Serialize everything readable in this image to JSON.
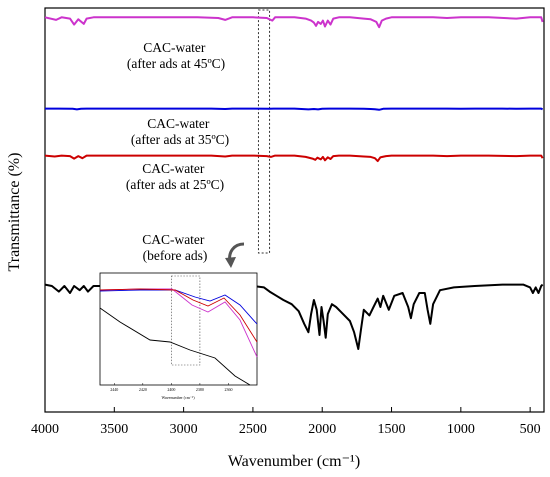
{
  "chart_data": {
    "type": "line",
    "title": "",
    "xlabel": "Wavenumber (cm⁻¹)",
    "ylabel": "Transmittance (%)",
    "xlim": [
      4000,
      400
    ],
    "x_reversed": true,
    "x_ticks": [
      4000,
      3500,
      3000,
      2500,
      2000,
      1500,
      1000,
      500
    ],
    "y_ticks_shown": false,
    "grid": false,
    "series": [
      {
        "color": "#cc33cc",
        "points": [
          [
            4000,
            95
          ],
          [
            3920,
            91
          ],
          [
            3880,
            95
          ],
          [
            3820,
            93
          ],
          [
            3790,
            84
          ],
          [
            3760,
            92
          ],
          [
            3720,
            85
          ],
          [
            3700,
            93
          ],
          [
            3650,
            95
          ],
          [
            3400,
            95
          ],
          [
            3200,
            95
          ],
          [
            2900,
            95
          ],
          [
            2750,
            94
          ],
          [
            2700,
            91
          ],
          [
            2650,
            95
          ],
          [
            2500,
            95
          ],
          [
            2400,
            94
          ],
          [
            2360,
            90
          ],
          [
            2340,
            95
          ],
          [
            2200,
            95
          ],
          [
            2120,
            93
          ],
          [
            2080,
            90
          ],
          [
            2060,
            87
          ],
          [
            2045,
            82
          ],
          [
            2030,
            88
          ],
          [
            2010,
            85
          ],
          [
            1995,
            90
          ],
          [
            1980,
            81
          ],
          [
            1960,
            90
          ],
          [
            1940,
            84
          ],
          [
            1920,
            93
          ],
          [
            1880,
            95
          ],
          [
            1800,
            95
          ],
          [
            1700,
            93
          ],
          [
            1650,
            92
          ],
          [
            1610,
            88
          ],
          [
            1590,
            80
          ],
          [
            1570,
            90
          ],
          [
            1540,
            93
          ],
          [
            1500,
            95
          ],
          [
            1200,
            95
          ],
          [
            1100,
            94
          ],
          [
            1000,
            95
          ],
          [
            800,
            95
          ],
          [
            600,
            93
          ],
          [
            500,
            95
          ],
          [
            420,
            95
          ],
          [
            410,
            88
          ]
        ]
      },
      {
        "color": "#0000dd",
        "points": [
          [
            4000,
            67
          ],
          [
            3900,
            67
          ],
          [
            3800,
            66
          ],
          [
            3770,
            63
          ],
          [
            3740,
            66
          ],
          [
            3700,
            67
          ],
          [
            3400,
            67
          ],
          [
            3000,
            67
          ],
          [
            2800,
            67
          ],
          [
            2700,
            65
          ],
          [
            2650,
            67
          ],
          [
            2500,
            67
          ],
          [
            2380,
            66
          ],
          [
            2350,
            67
          ],
          [
            2300,
            67
          ],
          [
            2200,
            67
          ],
          [
            2100,
            63
          ],
          [
            2060,
            65
          ],
          [
            2030,
            63
          ],
          [
            2000,
            66
          ],
          [
            1950,
            67
          ],
          [
            1800,
            67
          ],
          [
            1700,
            66
          ],
          [
            1650,
            65
          ],
          [
            1620,
            64
          ],
          [
            1590,
            61
          ],
          [
            1560,
            66
          ],
          [
            1500,
            67
          ],
          [
            1200,
            67
          ],
          [
            1100,
            67
          ],
          [
            1000,
            66
          ],
          [
            900,
            67
          ],
          [
            700,
            67
          ],
          [
            600,
            66
          ],
          [
            500,
            67
          ],
          [
            420,
            67
          ],
          [
            410,
            63
          ]
        ]
      },
      {
        "color": "#cc0000",
        "points": [
          [
            4000,
            58
          ],
          [
            3930,
            56
          ],
          [
            3880,
            58
          ],
          [
            3820,
            57
          ],
          [
            3790,
            51
          ],
          [
            3760,
            57
          ],
          [
            3730,
            52
          ],
          [
            3700,
            58
          ],
          [
            3400,
            58
          ],
          [
            3000,
            58
          ],
          [
            2800,
            58
          ],
          [
            2700,
            56
          ],
          [
            2650,
            58
          ],
          [
            2500,
            58
          ],
          [
            2400,
            57
          ],
          [
            2370,
            55
          ],
          [
            2340,
            58
          ],
          [
            2200,
            58
          ],
          [
            2120,
            55
          ],
          [
            2070,
            51
          ],
          [
            2050,
            48
          ],
          [
            2035,
            53
          ],
          [
            2010,
            49
          ],
          [
            1995,
            55
          ],
          [
            1980,
            47
          ],
          [
            1960,
            54
          ],
          [
            1940,
            50
          ],
          [
            1920,
            57
          ],
          [
            1880,
            58
          ],
          [
            1800,
            58
          ],
          [
            1700,
            56
          ],
          [
            1650,
            55
          ],
          [
            1620,
            52
          ],
          [
            1600,
            45
          ],
          [
            1580,
            54
          ],
          [
            1540,
            57
          ],
          [
            1500,
            58
          ],
          [
            1200,
            58
          ],
          [
            1100,
            57
          ],
          [
            1000,
            58
          ],
          [
            800,
            58
          ],
          [
            600,
            57
          ],
          [
            500,
            58
          ],
          [
            420,
            58
          ],
          [
            410,
            52
          ]
        ]
      },
      {
        "color": "#000000",
        "points": [
          [
            4000,
            46
          ],
          [
            3950,
            45
          ],
          [
            3900,
            41
          ],
          [
            3860,
            45
          ],
          [
            3820,
            40
          ],
          [
            3790,
            45
          ],
          [
            3750,
            42
          ],
          [
            3720,
            45
          ],
          [
            3690,
            41
          ],
          [
            3650,
            45
          ],
          [
            3600,
            45
          ],
          [
            3550,
            46
          ],
          [
            3400,
            46
          ],
          [
            3000,
            46
          ],
          [
            2800,
            46
          ],
          [
            2600,
            46
          ],
          [
            2500,
            45
          ],
          [
            2420,
            44
          ],
          [
            2380,
            41
          ],
          [
            2330,
            38
          ],
          [
            2280,
            35
          ],
          [
            2220,
            32
          ],
          [
            2170,
            27
          ],
          [
            2130,
            18
          ],
          [
            2100,
            12
          ],
          [
            2080,
            25
          ],
          [
            2060,
            35
          ],
          [
            2040,
            28
          ],
          [
            2020,
            10
          ],
          [
            2005,
            30
          ],
          [
            1990,
            20
          ],
          [
            1975,
            8
          ],
          [
            1960,
            25
          ],
          [
            1930,
            32
          ],
          [
            1900,
            30
          ],
          [
            1860,
            26
          ],
          [
            1800,
            20
          ],
          [
            1770,
            12
          ],
          [
            1740,
            0
          ],
          [
            1720,
            14
          ],
          [
            1700,
            28
          ],
          [
            1660,
            24
          ],
          [
            1630,
            30
          ],
          [
            1600,
            36
          ],
          [
            1580,
            30
          ],
          [
            1560,
            38
          ],
          [
            1520,
            28
          ],
          [
            1480,
            38
          ],
          [
            1420,
            40
          ],
          [
            1380,
            30
          ],
          [
            1360,
            22
          ],
          [
            1340,
            32
          ],
          [
            1300,
            40
          ],
          [
            1260,
            40
          ],
          [
            1240,
            28
          ],
          [
            1220,
            18
          ],
          [
            1200,
            32
          ],
          [
            1150,
            42
          ],
          [
            1050,
            44
          ],
          [
            900,
            45
          ],
          [
            700,
            46
          ],
          [
            550,
            46
          ],
          [
            500,
            44
          ],
          [
            480,
            40
          ],
          [
            460,
            44
          ],
          [
            440,
            40
          ],
          [
            420,
            45
          ],
          [
            410,
            46
          ]
        ]
      }
    ],
    "annotations": [
      {
        "lines": [
          "CAC-water",
          "(after ads at 45ºC)"
        ]
      },
      {
        "lines": [
          "CAC-water",
          "(after ads at 35ºC)"
        ]
      },
      {
        "lines": [
          "CAC-water",
          "(after ads at 25ºC)"
        ]
      },
      {
        "lines": [
          "CAC-water",
          "(before ads)"
        ]
      }
    ],
    "inset": {
      "xlim": [
        2450,
        2340
      ],
      "x_ticks": [
        2440,
        2420,
        2400,
        2380,
        2360
      ],
      "xlabel": "Wavenumber (cm⁻¹)",
      "highlight_range": [
        2400,
        2380
      ]
    },
    "highlight_box_range": [
      2460,
      2380
    ]
  }
}
